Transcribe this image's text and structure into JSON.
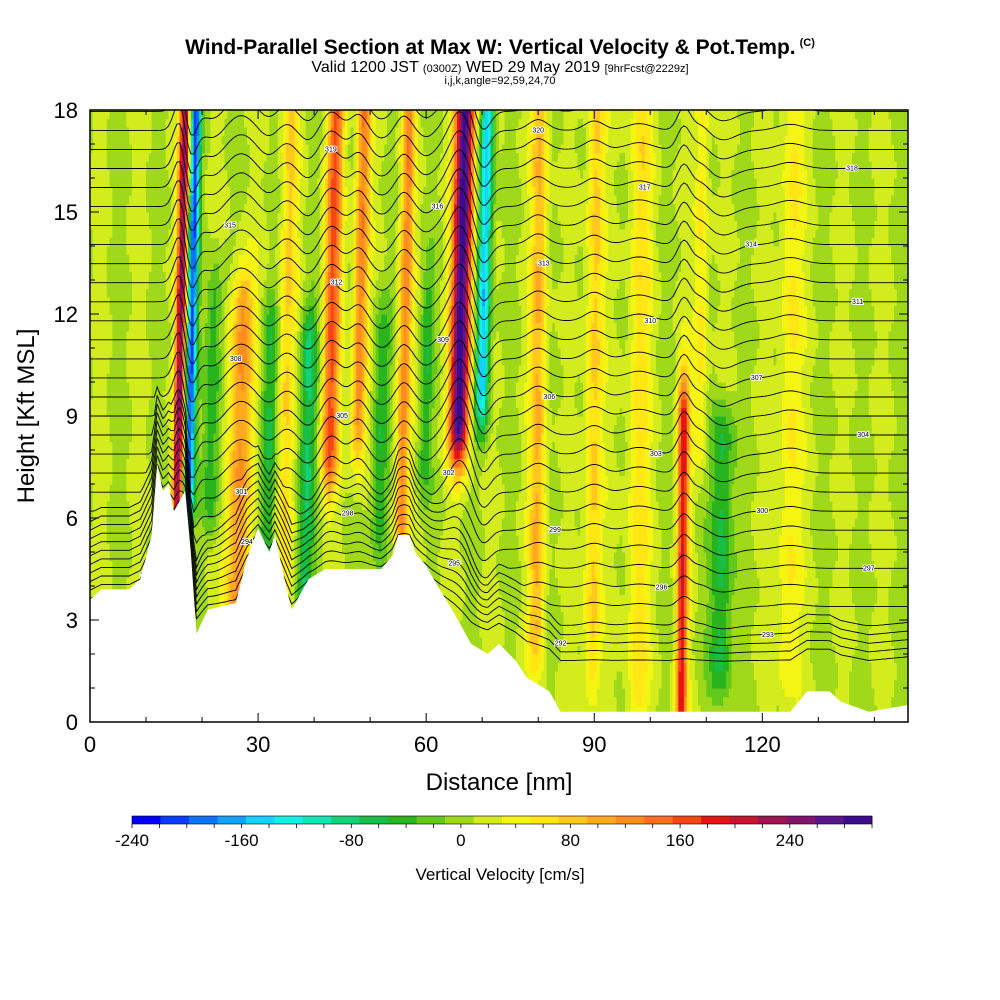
{
  "header": {
    "title": "Wind-Parallel Section at Max W: Vertical Velocity & Pot.Temp.",
    "copyright": "(C)",
    "valid_prefix": "Valid 1200 JST",
    "valid_utc": "(0300Z)",
    "valid_date": "WED 29 May 2019",
    "forecast": "[9hrFcst@2229z]",
    "indices": "i,j,k,angle=92,59,24,70"
  },
  "chart_data": {
    "type": "heatmap",
    "xlabel": "Distance [nm]",
    "ylabel": "Height [Kft MSL]",
    "xlim": [
      0,
      146
    ],
    "ylim": [
      0,
      18
    ],
    "xticks": [
      0,
      30,
      60,
      90,
      120
    ],
    "yticks": [
      0,
      3,
      6,
      9,
      12,
      15,
      18
    ],
    "contour_overlay": "potential temperature isolines (black)",
    "colorbar": {
      "label": "Vertical Velocity [cm/s]",
      "min": -240,
      "max": 300,
      "step": 20,
      "ticks": [
        -240,
        -160,
        -80,
        0,
        80,
        160,
        240
      ],
      "colors": [
        "#0000ff",
        "#0a3cff",
        "#0a73ff",
        "#13a3ff",
        "#15d2ff",
        "#14f0e6",
        "#12e6b4",
        "#14d278",
        "#18be46",
        "#28b41e",
        "#64c81a",
        "#a0d81a",
        "#d2ec1e",
        "#f5f514",
        "#ffe614",
        "#ffc81e",
        "#ffaa1e",
        "#ff8c1e",
        "#ff6e1e",
        "#f54614",
        "#e61414",
        "#c81432",
        "#a01450",
        "#82146e",
        "#5a148c",
        "#3c0a8c"
      ]
    },
    "terrain_kft": [
      [
        0,
        3.6
      ],
      [
        2,
        3.9
      ],
      [
        7,
        3.9
      ],
      [
        9,
        4.2
      ],
      [
        11,
        5.5
      ],
      [
        12,
        7.6
      ],
      [
        13,
        6.8
      ],
      [
        14,
        7.0
      ],
      [
        15,
        6.2
      ],
      [
        17,
        6.8
      ],
      [
        18,
        5.0
      ],
      [
        19,
        2.6
      ],
      [
        21,
        3.3
      ],
      [
        26,
        3.5
      ],
      [
        28,
        4.8
      ],
      [
        30,
        5.7
      ],
      [
        32,
        5.0
      ],
      [
        33,
        5.5
      ],
      [
        35,
        4.0
      ],
      [
        36,
        3.3
      ],
      [
        37,
        3.6
      ],
      [
        39,
        4.2
      ],
      [
        42,
        4.5
      ],
      [
        52,
        4.5
      ],
      [
        54,
        4.9
      ],
      [
        55,
        5.5
      ],
      [
        57,
        5.5
      ],
      [
        58,
        5.0
      ],
      [
        60,
        4.6
      ],
      [
        61,
        4.3
      ],
      [
        65,
        3.2
      ],
      [
        68,
        2.3
      ],
      [
        71,
        2.0
      ],
      [
        73,
        2.3
      ],
      [
        76,
        1.8
      ],
      [
        78,
        1.3
      ],
      [
        82,
        0.9
      ],
      [
        84,
        0.3
      ],
      [
        125,
        0.3
      ],
      [
        128,
        0.9
      ],
      [
        132,
        0.9
      ],
      [
        134,
        0.6
      ],
      [
        139,
        0.3
      ],
      [
        146,
        0.5
      ]
    ],
    "updrafts": [
      [
        16,
        220,
        0.9,
        7,
        18
      ],
      [
        27,
        110,
        2.0,
        2,
        12
      ],
      [
        35,
        60,
        1.5,
        3,
        18
      ],
      [
        43,
        140,
        1.5,
        8,
        18
      ],
      [
        48,
        120,
        1.3,
        9,
        18
      ],
      [
        56,
        110,
        1.2,
        6,
        18
      ],
      [
        66,
        280,
        1.7,
        9,
        18
      ],
      [
        80,
        80,
        1.5,
        3,
        18
      ],
      [
        90,
        70,
        1.5,
        2,
        18
      ],
      [
        98,
        50,
        2.0,
        1,
        18
      ],
      [
        106,
        170,
        1.0,
        0,
        9
      ],
      [
        109,
        50,
        1.2,
        9,
        18
      ],
      [
        125,
        45,
        2.0,
        2,
        18
      ]
    ],
    "downdrafts": [
      [
        18,
        -200,
        0.9,
        7,
        18
      ],
      [
        22,
        -60,
        1.5,
        7,
        12
      ],
      [
        32,
        -60,
        1.5,
        2,
        11
      ],
      [
        39,
        -80,
        1.5,
        4,
        11
      ],
      [
        52,
        -60,
        1.5,
        6,
        11
      ],
      [
        60,
        -50,
        1.2,
        8,
        12
      ],
      [
        70,
        -160,
        1.2,
        10,
        18
      ],
      [
        113,
        -70,
        2.0,
        2,
        8
      ]
    ],
    "contour_values": [
      "290",
      "291",
      "292",
      "293",
      "294",
      "295",
      "296",
      "297",
      "298",
      "299",
      "300",
      "301",
      "302",
      "303",
      "304",
      "305",
      "306",
      "307",
      "308",
      "309",
      "310",
      "311",
      "312",
      "313",
      "314",
      "315",
      "316",
      "317",
      "318",
      "319",
      "320",
      "321"
    ]
  }
}
